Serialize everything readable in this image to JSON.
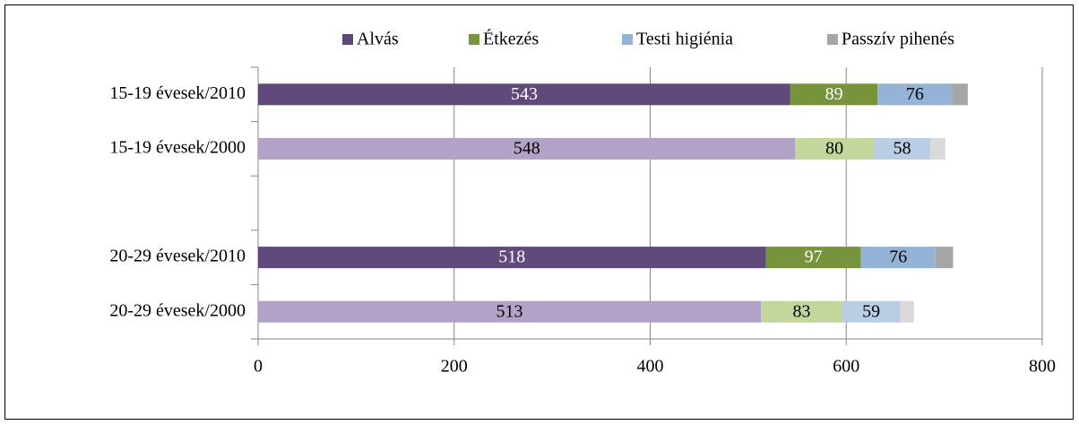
{
  "chart_data": {
    "type": "stacked-barh",
    "categories": [
      "15-19 évesek/2010",
      "15-19 évesek/2000",
      null,
      "20-29 évesek/2010",
      "20-29 évesek/2000"
    ],
    "series": [
      {
        "name": "Alvás",
        "color": "#604a7b",
        "colors": [
          "#604a7b",
          "#b3a2c7",
          null,
          "#604a7b",
          "#b3a2c7"
        ],
        "values": [
          543,
          548,
          null,
          518,
          513
        ],
        "data_labels": true
      },
      {
        "name": "Étkezés",
        "color": "#77933c",
        "colors": [
          "#77933c",
          "#c3d69b",
          null,
          "#77933c",
          "#c3d69b"
        ],
        "values": [
          89,
          80,
          null,
          97,
          83
        ],
        "data_labels": true
      },
      {
        "name": "Testi higiénia",
        "color": "#95b3d7",
        "colors": [
          "#95b3d7",
          "#b9cde5",
          null,
          "#95b3d7",
          "#b9cde5"
        ],
        "values": [
          76,
          58,
          null,
          76,
          59
        ],
        "data_labels": true
      },
      {
        "name": "Passzív pihenés",
        "color": "#a6a6a6",
        "colors": [
          "#a6a6a6",
          "#d9d9d9",
          null,
          "#a6a6a6",
          "#d9d9d9"
        ],
        "values": [
          16,
          15,
          null,
          18,
          14
        ],
        "data_labels": false
      }
    ],
    "xlim": [
      0,
      800
    ],
    "xticks": [
      0,
      200,
      400,
      600,
      800
    ],
    "grid": true,
    "legend": "top"
  }
}
